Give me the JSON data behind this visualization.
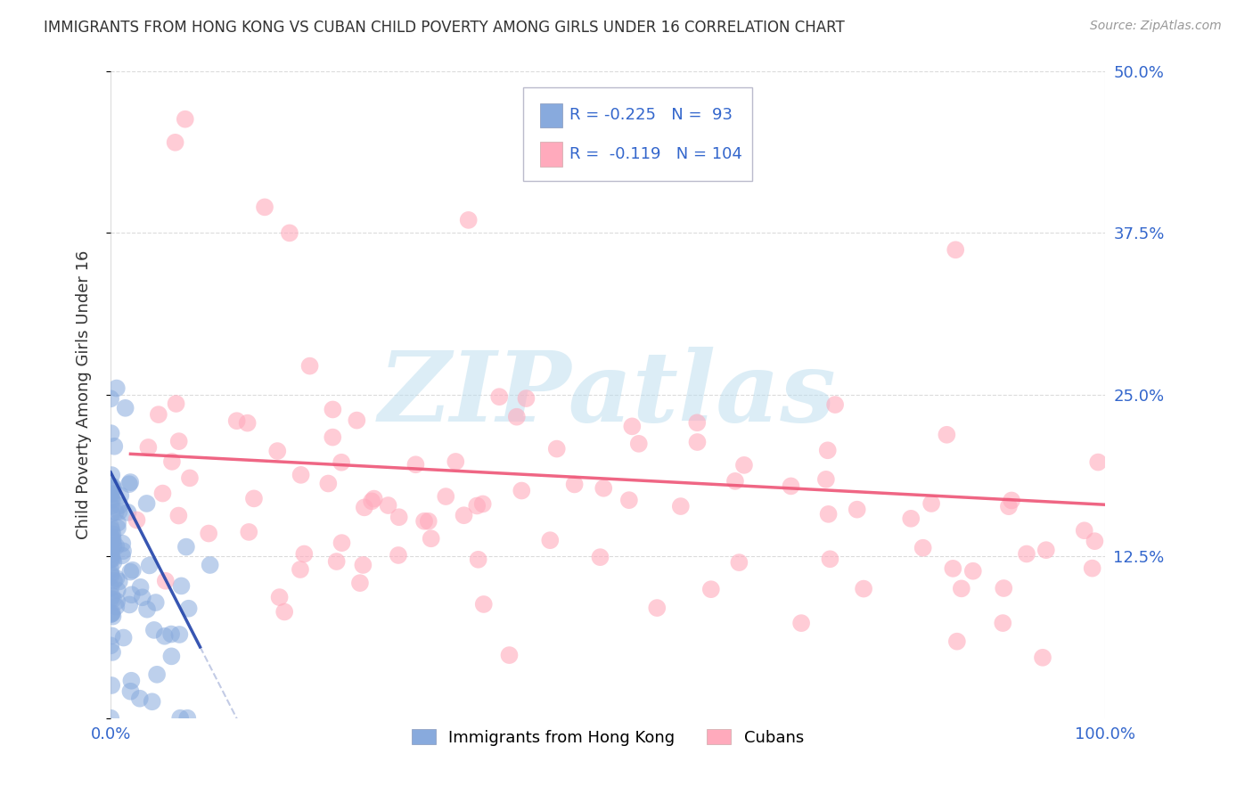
{
  "title": "IMMIGRANTS FROM HONG KONG VS CUBAN CHILD POVERTY AMONG GIRLS UNDER 16 CORRELATION CHART",
  "source": "Source: ZipAtlas.com",
  "ylabel": "Child Poverty Among Girls Under 16",
  "xlim": [
    0,
    1.0
  ],
  "ylim": [
    0,
    0.5
  ],
  "yticks": [
    0,
    0.125,
    0.25,
    0.375,
    0.5
  ],
  "ytick_labels": [
    "",
    "12.5%",
    "25.0%",
    "37.5%",
    "50.0%"
  ],
  "xticks": [
    0,
    0.25,
    0.5,
    0.75,
    1.0
  ],
  "xtick_labels": [
    "0.0%",
    "",
    "",
    "",
    "100.0%"
  ],
  "legend_R1": "-0.225",
  "legend_N1": "93",
  "legend_R2": "-0.119",
  "legend_N2": "104",
  "color_blue": "#88AADD",
  "color_pink": "#FFAABC",
  "color_trendline_blue": "#2244AA",
  "color_trendline_pink": "#EE5577",
  "watermark_color": "#BBDDEE",
  "background_color": "#FFFFFF",
  "grid_color": "#CCCCCC",
  "text_color": "#333333",
  "axis_label_color": "#3366CC",
  "title_fontsize": 12,
  "source_fontsize": 10,
  "tick_fontsize": 13,
  "ylabel_fontsize": 13
}
